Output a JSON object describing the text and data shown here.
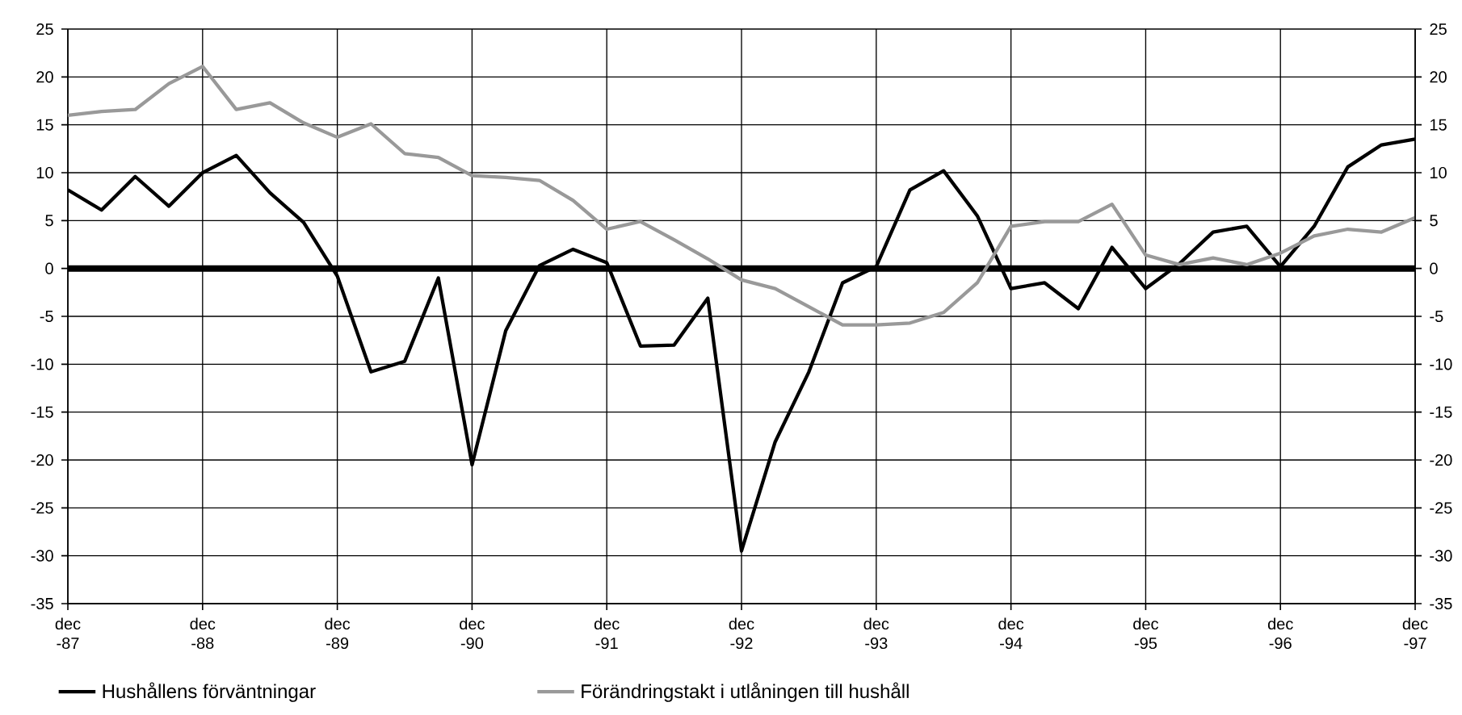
{
  "chart_data": {
    "type": "line",
    "x": [
      "1987-12",
      "1988-03",
      "1988-06",
      "1988-09",
      "1988-12",
      "1989-03",
      "1989-06",
      "1989-09",
      "1989-12",
      "1990-03",
      "1990-06",
      "1990-09",
      "1990-12",
      "1991-03",
      "1991-06",
      "1991-09",
      "1991-12",
      "1992-03",
      "1992-06",
      "1992-09",
      "1992-12",
      "1993-03",
      "1993-06",
      "1993-09",
      "1993-12",
      "1994-03",
      "1994-06",
      "1994-09",
      "1994-12",
      "1995-03",
      "1995-06",
      "1995-09",
      "1995-12",
      "1996-03",
      "1996-06",
      "1996-09",
      "1996-12",
      "1997-03",
      "1997-06",
      "1997-09",
      "1997-12"
    ],
    "series": [
      {
        "name": "Hushållens förväntningar",
        "color": "#000000",
        "values": [
          8.2,
          6.1,
          9.6,
          6.5,
          10.0,
          11.8,
          7.9,
          4.8,
          -0.8,
          -10.8,
          -9.7,
          -1.0,
          -20.5,
          -6.5,
          0.3,
          2.0,
          0.6,
          -8.1,
          -8.0,
          -3.1,
          -29.5,
          -18.1,
          -10.8,
          -1.5,
          0.2,
          8.2,
          10.2,
          5.5,
          -2.1,
          -1.5,
          -4.2,
          2.2,
          -2.1,
          0.5,
          3.8,
          4.4,
          0.2,
          4.4,
          10.6,
          12.9,
          13.5
        ]
      },
      {
        "name": "Förändringstakt i utlåningen till hushåll",
        "color": "#999999",
        "values": [
          16.0,
          16.4,
          16.6,
          19.3,
          21.1,
          16.6,
          17.3,
          15.2,
          13.7,
          15.1,
          12.0,
          11.6,
          9.7,
          9.5,
          9.2,
          7.1,
          4.1,
          4.9,
          3.0,
          1.0,
          -1.2,
          -2.1,
          -4.0,
          -5.9,
          -5.9,
          -5.7,
          -4.6,
          -1.5,
          4.4,
          4.9,
          4.9,
          6.7,
          1.4,
          0.4,
          1.1,
          0.4,
          1.6,
          3.4,
          4.1,
          3.8,
          5.3
        ]
      }
    ],
    "xlim": [
      "1987-12",
      "1997-12"
    ],
    "xticks": [
      {
        "value": "1987-12",
        "label": "dec -87"
      },
      {
        "value": "1988-12",
        "label": "dec -88"
      },
      {
        "value": "1989-12",
        "label": "dec -89"
      },
      {
        "value": "1990-12",
        "label": "dec -90"
      },
      {
        "value": "1991-12",
        "label": "dec -91"
      },
      {
        "value": "1992-12",
        "label": "dec -92"
      },
      {
        "value": "1993-12",
        "label": "dec -93"
      },
      {
        "value": "1994-12",
        "label": "dec -94"
      },
      {
        "value": "1995-12",
        "label": "dec -95"
      },
      {
        "value": "1996-12",
        "label": "dec -96"
      },
      {
        "value": "1997-12",
        "label": "dec -97"
      }
    ],
    "ylim": [
      -35,
      25
    ],
    "yticks": [
      -35,
      -30,
      -25,
      -20,
      -15,
      -10,
      -5,
      0,
      5,
      10,
      15,
      20,
      25
    ],
    "y2lim": [
      -35,
      25
    ],
    "y2ticks": [
      -35,
      -30,
      -25,
      -20,
      -15,
      -10,
      -5,
      0,
      5,
      10,
      15,
      20,
      25
    ],
    "ref_lines": [
      {
        "axis": "y",
        "value": 0,
        "color": "#000000"
      }
    ],
    "grid": true,
    "legend": "bottom",
    "marker": "none",
    "line_style": "solid"
  }
}
